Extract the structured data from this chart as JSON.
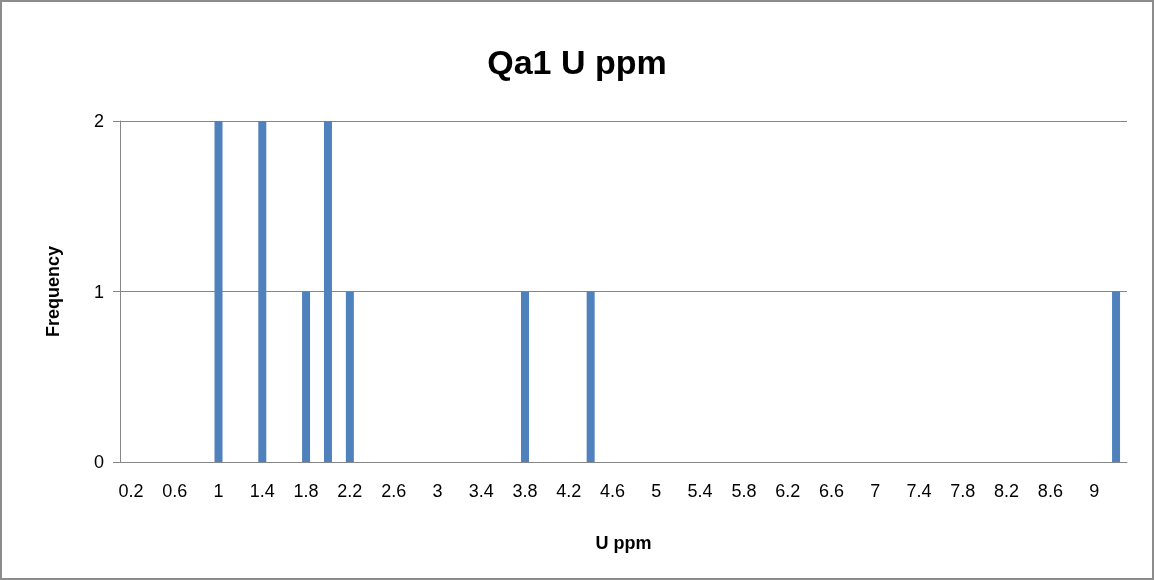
{
  "chart_data": {
    "type": "bar",
    "title": "Qa1 U ppm",
    "xlabel": "U ppm",
    "ylabel": "Frequency",
    "categories": [
      "0.2",
      null,
      "0.6",
      null,
      "1",
      null,
      "1.4",
      null,
      "1.8",
      null,
      "2.2",
      null,
      "2.6",
      null,
      "3",
      null,
      "3.4",
      null,
      "3.8",
      null,
      "4.2",
      null,
      "4.6",
      null,
      "5",
      null,
      "5.4",
      null,
      "5.8",
      null,
      "6.2",
      null,
      "6.6",
      null,
      "7",
      null,
      "7.4",
      null,
      "7.8",
      null,
      "8.2",
      null,
      "8.6",
      null,
      "9",
      null
    ],
    "values": [
      0,
      0,
      0,
      0,
      2,
      0,
      2,
      0,
      1,
      2,
      1,
      0,
      0,
      0,
      0,
      0,
      0,
      0,
      1,
      0,
      0,
      1,
      0,
      0,
      0,
      0,
      0,
      0,
      0,
      0,
      0,
      0,
      0,
      0,
      0,
      0,
      0,
      0,
      0,
      0,
      0,
      0,
      0,
      0,
      0,
      1
    ],
    "color": "#4f81bd",
    "ylim": [
      0,
      2
    ],
    "yticks": [
      0,
      1,
      2
    ],
    "grid": "y"
  }
}
